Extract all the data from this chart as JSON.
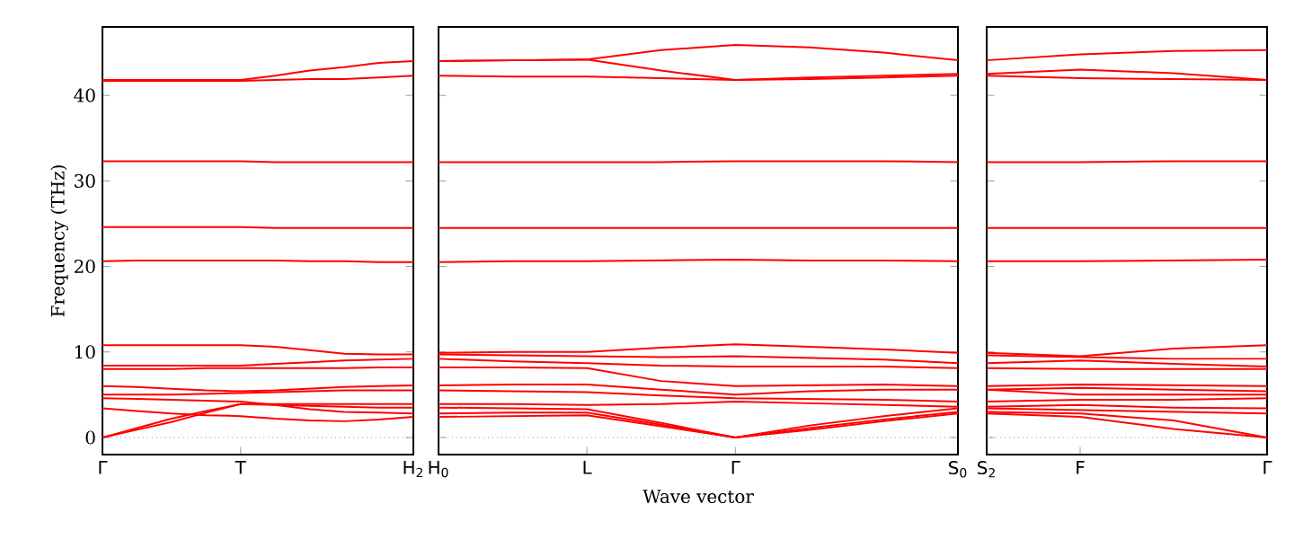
{
  "chart_data": [
    {
      "type": "line",
      "ylabel": "Frequency (THz)",
      "ylim": [
        -2,
        48
      ],
      "yticks": [
        0,
        10,
        20,
        30,
        40
      ],
      "categories": [
        "Γ",
        null,
        null,
        null,
        "T",
        null,
        null,
        null,
        null,
        "H$_{2}$"
      ],
      "ref_lines": [
        {
          "axis": "y",
          "value": 0,
          "color": "#8080ff",
          "line_style": "dotted"
        }
      ],
      "series": [
        {
          "color": "#ff0000",
          "values": [
            0,
            0.9,
            1.8,
            2.9,
            3.9,
            3.8,
            3.7,
            3.6,
            3.5,
            3.5
          ]
        },
        {
          "color": "#ff0000",
          "values": [
            0,
            1.1,
            2.2,
            3.1,
            3.9,
            3.9,
            3.9,
            3.9,
            3.9,
            3.9
          ]
        },
        {
          "color": "#ff0000",
          "values": [
            3.4,
            3.1,
            2.8,
            2.6,
            2.5,
            2.2,
            2.0,
            1.9,
            2.1,
            2.4
          ]
        },
        {
          "color": "#ff0000",
          "values": [
            4.6,
            4.5,
            4.4,
            4.3,
            4.2,
            3.8,
            3.3,
            3.0,
            2.9,
            2.8
          ]
        },
        {
          "color": "#ff0000",
          "values": [
            5.0,
            5.0,
            5.0,
            5.1,
            5.2,
            5.3,
            5.4,
            5.5,
            5.5,
            5.5
          ]
        },
        {
          "color": "#ff0000",
          "values": [
            6.0,
            5.9,
            5.7,
            5.5,
            5.4,
            5.5,
            5.7,
            5.9,
            6.0,
            6.1
          ]
        },
        {
          "color": "#ff0000",
          "values": [
            8.0,
            8.0,
            8.0,
            8.1,
            8.1,
            8.1,
            8.1,
            8.1,
            8.2,
            8.2
          ]
        },
        {
          "color": "#ff0000",
          "values": [
            8.4,
            8.4,
            8.4,
            8.4,
            8.4,
            8.6,
            8.8,
            9.0,
            9.1,
            9.2
          ]
        },
        {
          "color": "#ff0000",
          "values": [
            10.8,
            10.8,
            10.8,
            10.8,
            10.8,
            10.6,
            10.2,
            9.8,
            9.7,
            9.7
          ]
        },
        {
          "color": "#ff0000",
          "values": [
            20.6,
            20.7,
            20.7,
            20.7,
            20.7,
            20.7,
            20.6,
            20.6,
            20.5,
            20.5
          ]
        },
        {
          "color": "#ff0000",
          "values": [
            24.6,
            24.6,
            24.6,
            24.6,
            24.6,
            24.5,
            24.5,
            24.5,
            24.5,
            24.5
          ]
        },
        {
          "color": "#ff0000",
          "values": [
            32.3,
            32.3,
            32.3,
            32.3,
            32.3,
            32.2,
            32.2,
            32.2,
            32.2,
            32.2
          ]
        },
        {
          "color": "#ff0000",
          "values": [
            41.7,
            41.7,
            41.7,
            41.7,
            41.7,
            41.8,
            41.9,
            41.9,
            42.1,
            42.3
          ]
        },
        {
          "color": "#ff0000",
          "values": [
            41.8,
            41.8,
            41.8,
            41.8,
            41.8,
            42.3,
            42.9,
            43.3,
            43.8,
            44.0
          ]
        }
      ]
    },
    {
      "type": "line",
      "xlabel": "Wave vector",
      "tick_labels": "x",
      "ylim": [
        -2,
        48
      ],
      "yticks": [
        0,
        10,
        20,
        30,
        40
      ],
      "categories": [
        "H$_{0}$",
        null,
        "L",
        null,
        "Γ",
        null,
        null,
        "S$_{0}$"
      ],
      "ref_lines": [
        {
          "axis": "y",
          "value": 0,
          "color": "#8080ff",
          "line_style": "dotted"
        }
      ],
      "series": [
        {
          "color": "#ff0000",
          "values": [
            2.4,
            2.5,
            2.6,
            1.3,
            0,
            0.9,
            1.9,
            2.8
          ]
        },
        {
          "color": "#ff0000",
          "values": [
            2.8,
            2.9,
            2.9,
            1.5,
            0,
            1.1,
            2.1,
            3.0
          ]
        },
        {
          "color": "#ff0000",
          "values": [
            3.5,
            3.4,
            3.3,
            1.7,
            0,
            1.4,
            2.5,
            3.4
          ]
        },
        {
          "color": "#ff0000",
          "values": [
            3.9,
            3.9,
            3.8,
            3.9,
            4.2,
            4.0,
            3.8,
            3.6
          ]
        },
        {
          "color": "#ff0000",
          "values": [
            5.5,
            5.4,
            5.3,
            4.9,
            4.6,
            4.5,
            4.4,
            4.2
          ]
        },
        {
          "color": "#ff0000",
          "values": [
            6.1,
            6.2,
            6.2,
            5.6,
            5.0,
            5.4,
            5.6,
            5.6
          ]
        },
        {
          "color": "#ff0000",
          "values": [
            8.2,
            8.2,
            8.1,
            6.6,
            6.0,
            6.1,
            6.2,
            6.0
          ]
        },
        {
          "color": "#ff0000",
          "values": [
            9.2,
            8.9,
            8.7,
            8.4,
            8.3,
            8.3,
            8.3,
            8.1
          ]
        },
        {
          "color": "#ff0000",
          "values": [
            9.7,
            9.6,
            9.5,
            9.4,
            9.5,
            9.3,
            9.1,
            8.7
          ]
        },
        {
          "color": "#ff0000",
          "values": [
            9.9,
            10.0,
            10.0,
            10.5,
            10.9,
            10.6,
            10.3,
            9.9
          ]
        },
        {
          "color": "#ff0000",
          "values": [
            20.5,
            20.6,
            20.6,
            20.7,
            20.8,
            20.7,
            20.7,
            20.6
          ]
        },
        {
          "color": "#ff0000",
          "values": [
            24.5,
            24.5,
            24.5,
            24.5,
            24.5,
            24.5,
            24.5,
            24.5
          ]
        },
        {
          "color": "#ff0000",
          "values": [
            32.2,
            32.2,
            32.2,
            32.2,
            32.3,
            32.3,
            32.3,
            32.2
          ]
        },
        {
          "color": "#ff0000",
          "values": [
            42.3,
            42.2,
            42.2,
            42.0,
            41.8,
            41.9,
            42.1,
            42.3
          ]
        },
        {
          "color": "#ff0000",
          "values": [
            44.0,
            44.1,
            44.2,
            42.9,
            41.8,
            42.1,
            42.3,
            42.5
          ]
        },
        {
          "color": "#ff0000",
          "values": [
            44.0,
            44.1,
            44.2,
            45.3,
            45.9,
            45.6,
            45.0,
            44.1
          ]
        }
      ]
    },
    {
      "type": "line",
      "tick_labels": "x",
      "ylim": [
        -2,
        48
      ],
      "yticks": [
        0,
        10,
        20,
        30,
        40
      ],
      "categories": [
        "S$_{2}$",
        "F",
        null,
        "Γ"
      ],
      "ref_lines": [
        {
          "axis": "y",
          "value": 0,
          "color": "#8080ff",
          "line_style": "dotted"
        }
      ],
      "series": [
        {
          "color": "#ff0000",
          "values": [
            2.8,
            2.4,
            1.0,
            0
          ]
        },
        {
          "color": "#ff0000",
          "values": [
            3.0,
            2.8,
            2.0,
            0
          ]
        },
        {
          "color": "#ff0000",
          "values": [
            3.4,
            3.2,
            3.0,
            2.8
          ]
        },
        {
          "color": "#ff0000",
          "values": [
            3.6,
            3.8,
            3.5,
            3.4
          ]
        },
        {
          "color": "#ff0000",
          "values": [
            4.2,
            4.4,
            4.4,
            4.6
          ]
        },
        {
          "color": "#ff0000",
          "values": [
            5.6,
            5.0,
            5.0,
            5.0
          ]
        },
        {
          "color": "#ff0000",
          "values": [
            5.6,
            5.8,
            5.6,
            5.4
          ]
        },
        {
          "color": "#ff0000",
          "values": [
            6.0,
            6.2,
            6.1,
            6.0
          ]
        },
        {
          "color": "#ff0000",
          "values": [
            8.1,
            8.0,
            8.0,
            8.0
          ]
        },
        {
          "color": "#ff0000",
          "values": [
            8.7,
            9.0,
            8.6,
            8.3
          ]
        },
        {
          "color": "#ff0000",
          "values": [
            9.6,
            9.4,
            9.2,
            9.2
          ]
        },
        {
          "color": "#ff0000",
          "values": [
            9.9,
            9.5,
            10.4,
            10.8
          ]
        },
        {
          "color": "#ff0000",
          "values": [
            20.6,
            20.6,
            20.7,
            20.8
          ]
        },
        {
          "color": "#ff0000",
          "values": [
            24.5,
            24.5,
            24.5,
            24.5
          ]
        },
        {
          "color": "#ff0000",
          "values": [
            32.2,
            32.2,
            32.3,
            32.3
          ]
        },
        {
          "color": "#ff0000",
          "values": [
            42.3,
            42.0,
            41.9,
            41.8
          ]
        },
        {
          "color": "#ff0000",
          "values": [
            42.5,
            43.0,
            42.6,
            41.8
          ]
        },
        {
          "color": "#ff0000",
          "values": [
            44.1,
            44.8,
            45.2,
            45.3
          ]
        }
      ]
    }
  ]
}
